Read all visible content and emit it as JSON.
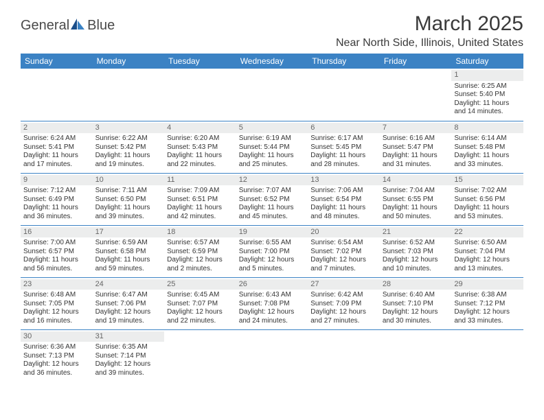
{
  "logo": {
    "text1": "General",
    "text2": "Blue"
  },
  "title": "March 2025",
  "location": "Near North Side, Illinois, United States",
  "colors": {
    "header_bg": "#3b82c4",
    "header_text": "#ffffff",
    "border": "#3b82c4",
    "daynum_bg": "#eceded",
    "text": "#333333"
  },
  "dayNames": [
    "Sunday",
    "Monday",
    "Tuesday",
    "Wednesday",
    "Thursday",
    "Friday",
    "Saturday"
  ],
  "weeks": [
    [
      null,
      null,
      null,
      null,
      null,
      null,
      {
        "n": "1",
        "sr": "6:25 AM",
        "ss": "5:40 PM",
        "dl": "11 hours and 14 minutes."
      }
    ],
    [
      {
        "n": "2",
        "sr": "6:24 AM",
        "ss": "5:41 PM",
        "dl": "11 hours and 17 minutes."
      },
      {
        "n": "3",
        "sr": "6:22 AM",
        "ss": "5:42 PM",
        "dl": "11 hours and 19 minutes."
      },
      {
        "n": "4",
        "sr": "6:20 AM",
        "ss": "5:43 PM",
        "dl": "11 hours and 22 minutes."
      },
      {
        "n": "5",
        "sr": "6:19 AM",
        "ss": "5:44 PM",
        "dl": "11 hours and 25 minutes."
      },
      {
        "n": "6",
        "sr": "6:17 AM",
        "ss": "5:45 PM",
        "dl": "11 hours and 28 minutes."
      },
      {
        "n": "7",
        "sr": "6:16 AM",
        "ss": "5:47 PM",
        "dl": "11 hours and 31 minutes."
      },
      {
        "n": "8",
        "sr": "6:14 AM",
        "ss": "5:48 PM",
        "dl": "11 hours and 33 minutes."
      }
    ],
    [
      {
        "n": "9",
        "sr": "7:12 AM",
        "ss": "6:49 PM",
        "dl": "11 hours and 36 minutes."
      },
      {
        "n": "10",
        "sr": "7:11 AM",
        "ss": "6:50 PM",
        "dl": "11 hours and 39 minutes."
      },
      {
        "n": "11",
        "sr": "7:09 AM",
        "ss": "6:51 PM",
        "dl": "11 hours and 42 minutes."
      },
      {
        "n": "12",
        "sr": "7:07 AM",
        "ss": "6:52 PM",
        "dl": "11 hours and 45 minutes."
      },
      {
        "n": "13",
        "sr": "7:06 AM",
        "ss": "6:54 PM",
        "dl": "11 hours and 48 minutes."
      },
      {
        "n": "14",
        "sr": "7:04 AM",
        "ss": "6:55 PM",
        "dl": "11 hours and 50 minutes."
      },
      {
        "n": "15",
        "sr": "7:02 AM",
        "ss": "6:56 PM",
        "dl": "11 hours and 53 minutes."
      }
    ],
    [
      {
        "n": "16",
        "sr": "7:00 AM",
        "ss": "6:57 PM",
        "dl": "11 hours and 56 minutes."
      },
      {
        "n": "17",
        "sr": "6:59 AM",
        "ss": "6:58 PM",
        "dl": "11 hours and 59 minutes."
      },
      {
        "n": "18",
        "sr": "6:57 AM",
        "ss": "6:59 PM",
        "dl": "12 hours and 2 minutes."
      },
      {
        "n": "19",
        "sr": "6:55 AM",
        "ss": "7:00 PM",
        "dl": "12 hours and 5 minutes."
      },
      {
        "n": "20",
        "sr": "6:54 AM",
        "ss": "7:02 PM",
        "dl": "12 hours and 7 minutes."
      },
      {
        "n": "21",
        "sr": "6:52 AM",
        "ss": "7:03 PM",
        "dl": "12 hours and 10 minutes."
      },
      {
        "n": "22",
        "sr": "6:50 AM",
        "ss": "7:04 PM",
        "dl": "12 hours and 13 minutes."
      }
    ],
    [
      {
        "n": "23",
        "sr": "6:48 AM",
        "ss": "7:05 PM",
        "dl": "12 hours and 16 minutes."
      },
      {
        "n": "24",
        "sr": "6:47 AM",
        "ss": "7:06 PM",
        "dl": "12 hours and 19 minutes."
      },
      {
        "n": "25",
        "sr": "6:45 AM",
        "ss": "7:07 PM",
        "dl": "12 hours and 22 minutes."
      },
      {
        "n": "26",
        "sr": "6:43 AM",
        "ss": "7:08 PM",
        "dl": "12 hours and 24 minutes."
      },
      {
        "n": "27",
        "sr": "6:42 AM",
        "ss": "7:09 PM",
        "dl": "12 hours and 27 minutes."
      },
      {
        "n": "28",
        "sr": "6:40 AM",
        "ss": "7:10 PM",
        "dl": "12 hours and 30 minutes."
      },
      {
        "n": "29",
        "sr": "6:38 AM",
        "ss": "7:12 PM",
        "dl": "12 hours and 33 minutes."
      }
    ],
    [
      {
        "n": "30",
        "sr": "6:36 AM",
        "ss": "7:13 PM",
        "dl": "12 hours and 36 minutes."
      },
      {
        "n": "31",
        "sr": "6:35 AM",
        "ss": "7:14 PM",
        "dl": "12 hours and 39 minutes."
      },
      null,
      null,
      null,
      null,
      null
    ]
  ],
  "labels": {
    "sunrise": "Sunrise: ",
    "sunset": "Sunset: ",
    "daylight": "Daylight: "
  }
}
